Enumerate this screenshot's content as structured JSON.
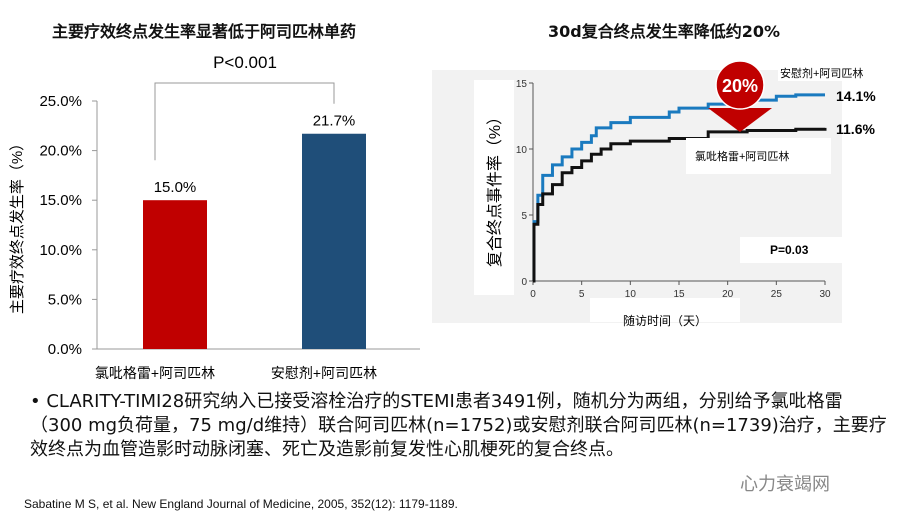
{
  "chart_data": [
    {
      "type": "bar",
      "title": "主要疗效终点发生率显著低于阿司匹林单药",
      "ylabel": "主要疗效终点发生率（%）",
      "categories": [
        "氯吡格雷+阿司匹林",
        "安慰剂+阿司匹林"
      ],
      "values": [
        15.0,
        21.7
      ],
      "data_labels": [
        "15.0%",
        "21.7%"
      ],
      "colors": [
        "#c00000",
        "#1f4e79"
      ],
      "yticks": [
        "0.0%",
        "5.0%",
        "10.0%",
        "15.0%",
        "20.0%",
        "25.0%"
      ],
      "ylim": [
        0,
        25
      ],
      "annotation": "P<0.001"
    },
    {
      "type": "line",
      "title": "30d复合终点发生率降低约20%",
      "xlabel": "随访时间（天）",
      "ylabel": "复合终点事件率（%）",
      "xlim": [
        0,
        30
      ],
      "ylim": [
        0,
        15
      ],
      "xticks": [
        0,
        5,
        10,
        15,
        20,
        25,
        30
      ],
      "yticks": [
        0,
        5,
        10,
        15
      ],
      "series": [
        {
          "name": "安慰剂+阿司匹林",
          "end_label": "14.1%",
          "color": "#1a7abf",
          "x": [
            0,
            0.1,
            0.5,
            1,
            2,
            3,
            4,
            5,
            6,
            6.5,
            7,
            8,
            10,
            14,
            15,
            18,
            20,
            25,
            27,
            30
          ],
          "y": [
            0,
            4.5,
            6.5,
            8,
            8.8,
            9.4,
            10,
            10.5,
            11,
            11.6,
            11.6,
            12,
            12.4,
            12.8,
            13.1,
            13.4,
            13.7,
            14,
            14.1,
            14.1
          ]
        },
        {
          "name": "氯吡格雷+阿司匹林",
          "end_label": "11.6%",
          "color": "#111111",
          "x": [
            0,
            0.1,
            0.5,
            1,
            2,
            3,
            4,
            5,
            6,
            7,
            8,
            10,
            14,
            18,
            22,
            27,
            30
          ],
          "y": [
            0,
            4.3,
            5.8,
            6.6,
            7.3,
            8.2,
            8.6,
            9.1,
            9.6,
            10,
            10.4,
            10.6,
            10.8,
            11.3,
            11.4,
            11.5,
            11.6
          ]
        }
      ],
      "badge": "20%",
      "pvalue": "P=0.03"
    }
  ],
  "bullet": "CLARITY-TIMI28研究纳入已接受溶栓治疗的STEMI患者3491例，随机分为两组，分别给予氯吡格雷（300 mg负荷量，75 mg/d维持）联合阿司匹林(n=1752)或安慰剂联合阿司匹林(n=1739)治疗，主要疗效终点为血管造影时动脉闭塞、死亡及造影前复发性心肌梗死的复合终点。",
  "citation": "Sabatine M S,  et al. New England  Journal of Medicine, 2005, 352(12): 1179-1189.",
  "watermark": "心力衰竭网"
}
